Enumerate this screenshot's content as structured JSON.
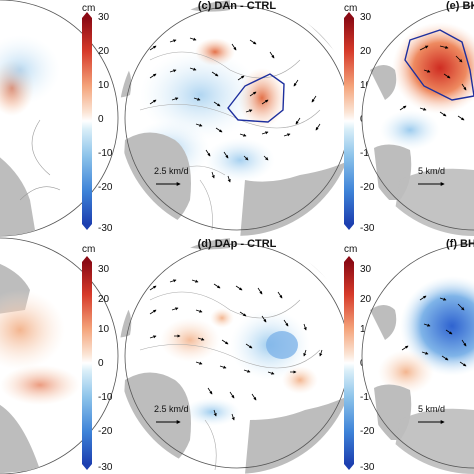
{
  "panels": {
    "c": {
      "title": "(c) DAn - CTRL",
      "scale_label": "2.5 km/d"
    },
    "d": {
      "title": "(d) DAp - CTRL",
      "scale_label": "2.5 km/d"
    },
    "e": {
      "title": "(e) BH",
      "scale_label": "5 km/d"
    },
    "f": {
      "title": "(f) BH",
      "scale_label": "5 km/d"
    }
  },
  "colorbar": {
    "unit": "cm",
    "ticks": [
      "30",
      "20",
      "10",
      "0",
      "-10",
      "-20",
      "-30"
    ]
  },
  "colors": {
    "land": "#bdbdbd",
    "ocean": "#ffffff",
    "positive": "#e35b3b",
    "negative": "#3f7fd6",
    "contour_box": "#1d2f9e"
  }
}
